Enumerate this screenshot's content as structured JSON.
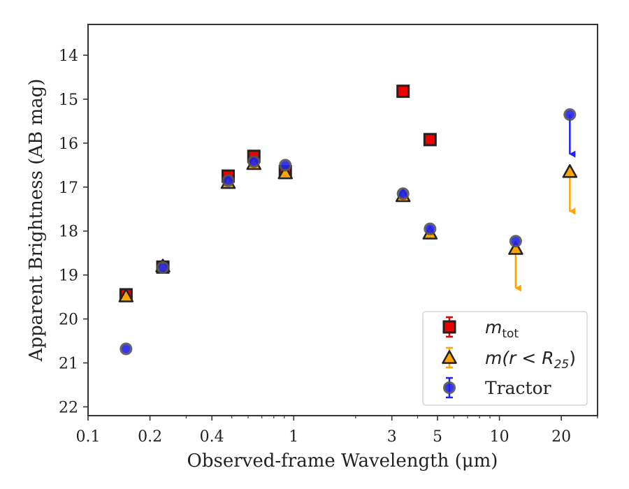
{
  "chart_data": {
    "type": "scatter",
    "xlabel": "Observed-frame Wavelength (μm)",
    "ylabel": "Apparent Brightness (AB mag)",
    "x_scale": "log",
    "xlim": [
      0.1,
      30
    ],
    "ylim": [
      22.2,
      13.3
    ],
    "y_inverted": true,
    "x_ticks": [
      {
        "value": 0.1,
        "label": "0.1"
      },
      {
        "value": 0.2,
        "label": "0.2"
      },
      {
        "value": 0.4,
        "label": "0.4"
      },
      {
        "value": 1,
        "label": "1"
      },
      {
        "value": 3,
        "label": "3"
      },
      {
        "value": 5,
        "label": "5"
      },
      {
        "value": 10,
        "label": "10"
      },
      {
        "value": 20,
        "label": "20"
      }
    ],
    "y_ticks": [
      {
        "value": 14,
        "label": "14"
      },
      {
        "value": 15,
        "label": "15"
      },
      {
        "value": 16,
        "label": "16"
      },
      {
        "value": 17,
        "label": "17"
      },
      {
        "value": 18,
        "label": "18"
      },
      {
        "value": 19,
        "label": "19"
      },
      {
        "value": 20,
        "label": "20"
      },
      {
        "value": 21,
        "label": "21"
      },
      {
        "value": 22,
        "label": "22"
      }
    ],
    "legend_position": "lower-right",
    "series": [
      {
        "name": "m_tot",
        "legend_main": "m",
        "legend_sub": "tot",
        "marker": "square",
        "color": "#e41a1c",
        "points": [
          {
            "x": 0.153,
            "y": 19.45
          },
          {
            "x": 0.231,
            "y": 18.82
          },
          {
            "x": 0.48,
            "y": 16.75
          },
          {
            "x": 0.64,
            "y": 16.3
          },
          {
            "x": 0.91,
            "y": 16.65
          },
          {
            "x": 3.4,
            "y": 14.82
          },
          {
            "x": 4.6,
            "y": 15.92
          }
        ]
      },
      {
        "name": "m(r < R25)",
        "legend_main": "m(r < R",
        "legend_sub": "25",
        "legend_tail": ")",
        "marker": "triangle",
        "color": "#ffa500",
        "points": [
          {
            "x": 0.153,
            "y": 19.48
          },
          {
            "x": 0.231,
            "y": 18.8
          },
          {
            "x": 0.48,
            "y": 16.9
          },
          {
            "x": 0.64,
            "y": 16.47
          },
          {
            "x": 0.91,
            "y": 16.68
          },
          {
            "x": 3.4,
            "y": 17.2
          },
          {
            "x": 4.6,
            "y": 18.05
          },
          {
            "x": 12.0,
            "y": 18.4,
            "upper_limit": true,
            "arrow_to": 19.3
          },
          {
            "x": 22.0,
            "y": 16.65,
            "upper_limit": true,
            "arrow_to": 17.55
          }
        ]
      },
      {
        "name": "Tractor",
        "legend_main": "Tractor",
        "marker": "circle",
        "color": "#0000ff",
        "points": [
          {
            "x": 0.153,
            "y": 20.68
          },
          {
            "x": 0.231,
            "y": 18.83
          },
          {
            "x": 0.48,
            "y": 16.85
          },
          {
            "x": 0.64,
            "y": 16.42
          },
          {
            "x": 0.91,
            "y": 16.5
          },
          {
            "x": 3.4,
            "y": 17.15
          },
          {
            "x": 4.6,
            "y": 17.95
          },
          {
            "x": 12.0,
            "y": 18.23,
            "upper_limit": false
          },
          {
            "x": 22.0,
            "y": 15.35,
            "upper_limit": true,
            "arrow_to": 16.25
          }
        ]
      }
    ]
  }
}
